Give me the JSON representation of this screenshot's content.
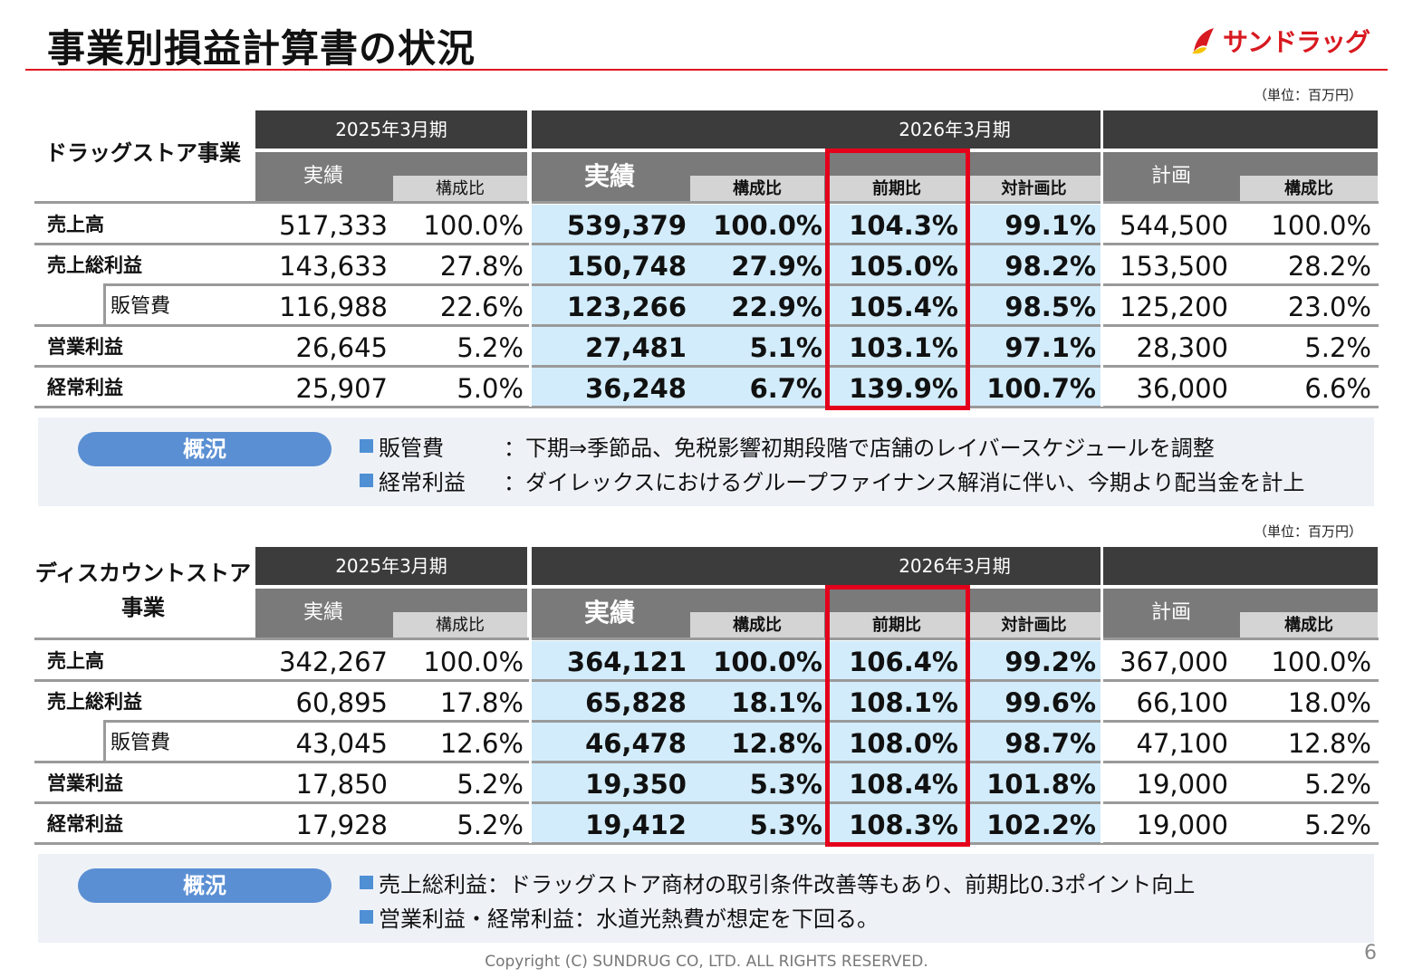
{
  "title": "事業別損益計算書の状況",
  "logo_text": "サンドラッグ",
  "colors": {
    "accent_red": "#e0141e",
    "highlight_blue": "#d2ecfb",
    "header_dark": "#3c3c3c",
    "pill_blue": "#5b8fd3"
  },
  "headers": {
    "fy2025": "2025年3月期",
    "fy2026": "2026年3月期",
    "actual": "実績",
    "ratio": "構成比",
    "yoy": "前期比",
    "vs_plan": "対計画比",
    "plan": "計画"
  },
  "sections": [
    {
      "unit": "（単位：百万円）",
      "segment_line1": "ドラッグストア事業",
      "segment_line2": "",
      "rows": [
        {
          "label": "売上高",
          "sub": false,
          "a25": "517,333",
          "r25": "100.0%",
          "a26": "539,379",
          "r26": "100.0%",
          "yoy": "104.3%",
          "vp": "99.1%",
          "plan": "544,500",
          "rp": "100.0%"
        },
        {
          "label": "売上総利益",
          "sub": false,
          "a25": "143,633",
          "r25": "27.8%",
          "a26": "150,748",
          "r26": "27.9%",
          "yoy": "105.0%",
          "vp": "98.2%",
          "plan": "153,500",
          "rp": "28.2%"
        },
        {
          "label": "販管費",
          "sub": true,
          "a25": "116,988",
          "r25": "22.6%",
          "a26": "123,266",
          "r26": "22.9%",
          "yoy": "105.4%",
          "vp": "98.5%",
          "plan": "125,200",
          "rp": "23.0%"
        },
        {
          "label": "営業利益",
          "sub": false,
          "a25": "26,645",
          "r25": "5.2%",
          "a26": "27,481",
          "r26": "5.1%",
          "yoy": "103.1%",
          "vp": "97.1%",
          "plan": "28,300",
          "rp": "5.2%"
        },
        {
          "label": "経常利益",
          "sub": false,
          "a25": "25,907",
          "r25": "5.0%",
          "a26": "36,248",
          "r26": "6.7%",
          "yoy": "139.9%",
          "vp": "100.7%",
          "plan": "36,000",
          "rp": "6.6%"
        }
      ],
      "note": {
        "pill": "概況",
        "lines": [
          {
            "key": "販管費",
            "text": "：下期⇒季節品、免税影響初期段階で店舗のレイバースケジュールを調整"
          },
          {
            "key": "経常利益",
            "text": "：ダイレックスにおけるグループファイナンス解消に伴い、今期より配当金を計上"
          }
        ]
      }
    },
    {
      "unit": "（単位：百万円）",
      "segment_line1": "ディスカウントストア",
      "segment_line2": "事業",
      "rows": [
        {
          "label": "売上高",
          "sub": false,
          "a25": "342,267",
          "r25": "100.0%",
          "a26": "364,121",
          "r26": "100.0%",
          "yoy": "106.4%",
          "vp": "99.2%",
          "plan": "367,000",
          "rp": "100.0%"
        },
        {
          "label": "売上総利益",
          "sub": false,
          "a25": "60,895",
          "r25": "17.8%",
          "a26": "65,828",
          "r26": "18.1%",
          "yoy": "108.1%",
          "vp": "99.6%",
          "plan": "66,100",
          "rp": "18.0%"
        },
        {
          "label": "販管費",
          "sub": true,
          "a25": "43,045",
          "r25": "12.6%",
          "a26": "46,478",
          "r26": "12.8%",
          "yoy": "108.0%",
          "vp": "98.7%",
          "plan": "47,100",
          "rp": "12.8%"
        },
        {
          "label": "営業利益",
          "sub": false,
          "a25": "17,850",
          "r25": "5.2%",
          "a26": "19,350",
          "r26": "5.3%",
          "yoy": "108.4%",
          "vp": "101.8%",
          "plan": "19,000",
          "rp": "5.2%"
        },
        {
          "label": "経常利益",
          "sub": false,
          "a25": "17,928",
          "r25": "5.2%",
          "a26": "19,412",
          "r26": "5.3%",
          "yoy": "108.3%",
          "vp": "102.2%",
          "plan": "19,000",
          "rp": "5.2%"
        }
      ],
      "note": {
        "pill": "概況",
        "lines": [
          {
            "key": "売上総利益",
            "text": "：ドラッグストア商材の取引条件改善等もあり、前期比0.3ポイント向上"
          },
          {
            "key": "営業利益・経常利益",
            "text": "：水道光熱費が想定を下回る。"
          }
        ]
      }
    }
  ],
  "footer": "Copyright (C)  SUNDRUG CO, LTD. ALL RIGHTS RESERVED.",
  "page_number": "6"
}
